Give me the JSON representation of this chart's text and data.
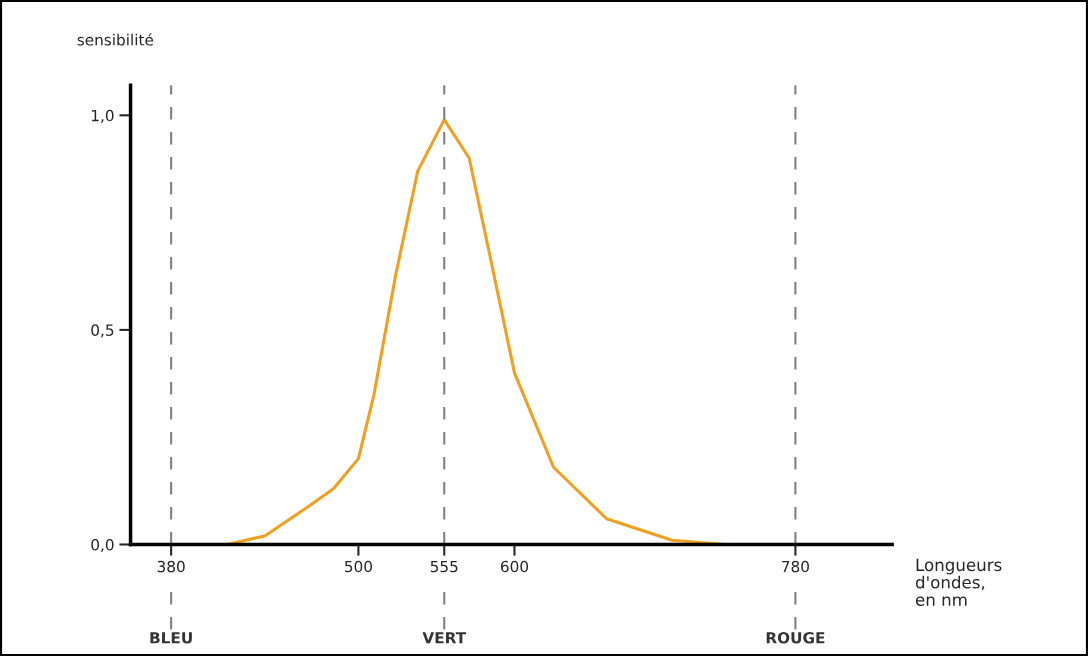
{
  "chart_data": {
    "type": "line",
    "ylabel": "sensibilité",
    "xlabel": "Longueurs\nd'ondes,\nen nm",
    "x": [
      416,
      440,
      467,
      484,
      500,
      510,
      524,
      538,
      555,
      571,
      585,
      600,
      625,
      659,
      701,
      735
    ],
    "series": [
      {
        "color": "#f0a020",
        "values": [
          0,
          0.02,
          0.086,
          0.13,
          0.2,
          0.35,
          0.63,
          0.87,
          0.99,
          0.9,
          0.66,
          0.4,
          0.18,
          0.06,
          0.01,
          0
        ]
      }
    ],
    "xlim": [
      354,
      842
    ],
    "ylim": [
      0,
      1.07
    ],
    "xticks": [
      380,
      500,
      555,
      600,
      780
    ],
    "yticks": [
      {
        "value": 0,
        "label": "0,0"
      },
      {
        "value": 0.5,
        "label": "0,5"
      },
      {
        "value": 1,
        "label": "1,0"
      }
    ],
    "ref_lines": [
      {
        "axis": "x",
        "value": 380,
        "color": "#808080",
        "line_style": "dashed"
      },
      {
        "axis": "x",
        "value": 555,
        "color": "#808080",
        "line_style": "dashed"
      },
      {
        "axis": "x",
        "value": 780,
        "color": "#808080",
        "line_style": "dashed"
      }
    ],
    "annotations": [
      "BLEU",
      "VERT",
      "ROUGE"
    ],
    "grid": false,
    "marker": "none",
    "line_style": "solid"
  }
}
